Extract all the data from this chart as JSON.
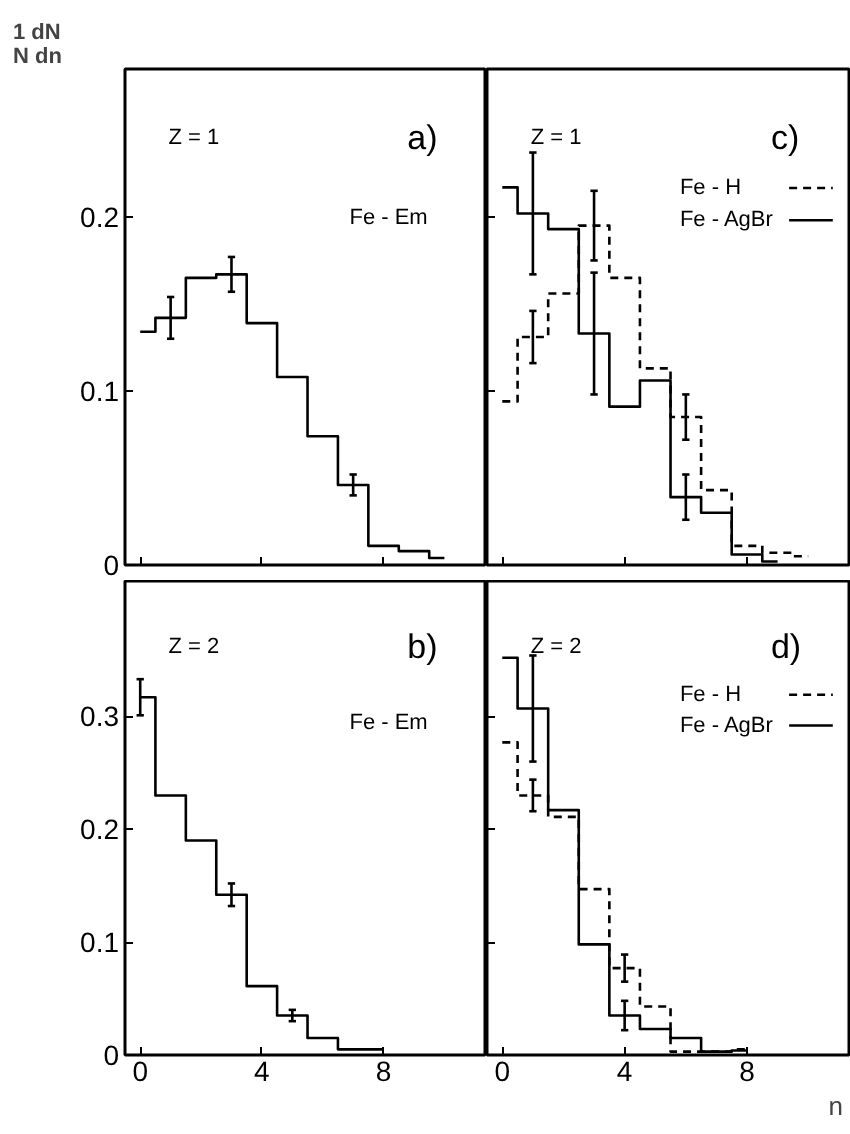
{
  "chart_data": [
    {
      "type": "step",
      "ylabel": "1 dN\nN dn",
      "annotations": [
        "Z = 1",
        "a)",
        "Fe - Em"
      ],
      "x": [
        0,
        1,
        2,
        3,
        4,
        5,
        6,
        7,
        8,
        9,
        10
      ],
      "xlim": [
        -0.5,
        11.4
      ],
      "ylim": [
        0,
        0.285
      ],
      "xticks": [
        {
          "value": 0,
          "label": null
        },
        {
          "value": 4,
          "label": null
        },
        {
          "value": 8,
          "label": null
        }
      ],
      "yticks": [
        0,
        0.1,
        0.2
      ],
      "tick_labels": "y",
      "grid": false,
      "series": [
        {
          "color": "#000000",
          "line_style": "solid",
          "values": [
            0.134,
            0.142,
            0.165,
            0.167,
            0.139,
            0.108,
            0.074,
            0.046,
            0.011,
            0.008,
            0.004
          ],
          "errors": [
            null,
            0.012,
            null,
            0.01,
            null,
            null,
            null,
            0.006,
            null,
            null,
            null
          ]
        }
      ]
    },
    {
      "type": "step",
      "annotations": [
        "Z = 1",
        "c)"
      ],
      "x": [
        0,
        1,
        2,
        3,
        4,
        5,
        6,
        7,
        8,
        9,
        10
      ],
      "xlim": [
        -0.5,
        11.4
      ],
      "ylim": [
        0,
        0.285
      ],
      "xticks": [
        {
          "value": 0,
          "label": null
        },
        {
          "value": 4,
          "label": null
        },
        {
          "value": 8,
          "label": null
        }
      ],
      "yticks": [
        {
          "value": 0,
          "label": null
        },
        {
          "value": 0.1,
          "label": null
        },
        {
          "value": 0.2,
          "label": null
        }
      ],
      "tick_labels": false,
      "grid": false,
      "legend": "top right",
      "series": [
        {
          "name": "Fe - H",
          "color": "#000000",
          "line_style": "dashed",
          "values": [
            0.094,
            0.131,
            0.156,
            0.195,
            0.165,
            0.113,
            0.085,
            0.043,
            0.011,
            0.007,
            0.005
          ],
          "errors": [
            null,
            0.015,
            null,
            0.02,
            null,
            null,
            0.013,
            null,
            null,
            null,
            null
          ]
        },
        {
          "name": "Fe - AgBr",
          "color": "#000000",
          "line_style": "solid",
          "values": [
            0.217,
            0.202,
            0.193,
            0.133,
            0.091,
            0.106,
            0.039,
            0.03,
            0.006,
            0.002,
            null
          ],
          "errors": [
            null,
            0.035,
            null,
            0.035,
            null,
            null,
            0.013,
            null,
            null,
            null,
            null
          ]
        }
      ]
    },
    {
      "type": "step",
      "annotations": [
        "Z = 2",
        "b)",
        "Fe - Em"
      ],
      "x": [
        0,
        1,
        2,
        3,
        4,
        5,
        6,
        7,
        8
      ],
      "xlim": [
        -0.5,
        11.4
      ],
      "ylim": [
        0,
        0.42
      ],
      "xticks": [
        0,
        4,
        8
      ],
      "yticks": [
        0,
        0.1,
        0.2,
        0.3
      ],
      "grid": false,
      "series": [
        {
          "color": "#000000",
          "line_style": "solid",
          "values": [
            0.317,
            0.23,
            0.19,
            0.142,
            0.061,
            0.035,
            0.015,
            0.005,
            0.005
          ],
          "errors": [
            0.016,
            null,
            null,
            0.01,
            null,
            0.005,
            null,
            null,
            null
          ]
        }
      ]
    },
    {
      "type": "step",
      "xlabel": "n",
      "annotations": [
        "Z = 2",
        "d)"
      ],
      "x": [
        0,
        1,
        2,
        3,
        4,
        5,
        6,
        7,
        8
      ],
      "xlim": [
        -0.5,
        11.4
      ],
      "ylim": [
        0,
        0.42
      ],
      "xticks": [
        0,
        4,
        8
      ],
      "yticks": [
        {
          "value": 0,
          "label": null
        },
        {
          "value": 0.1,
          "label": null
        },
        {
          "value": 0.2,
          "label": null
        },
        {
          "value": 0.3,
          "label": null
        }
      ],
      "tick_labels": "x",
      "grid": false,
      "legend": "top right",
      "series": [
        {
          "name": "Fe - H",
          "color": "#000000",
          "line_style": "dashed",
          "values": [
            0.277,
            0.23,
            0.211,
            0.147,
            0.077,
            0.043,
            0.003,
            0.003,
            0.005
          ],
          "errors": [
            null,
            0.014,
            null,
            null,
            0.012,
            null,
            null,
            null,
            null
          ]
        },
        {
          "name": "Fe - AgBr",
          "color": "#000000",
          "line_style": "solid",
          "values": [
            0.352,
            0.307,
            0.217,
            0.098,
            0.035,
            0.023,
            0.015,
            0.003,
            0.004
          ],
          "errors": [
            null,
            0.047,
            null,
            null,
            0.013,
            null,
            null,
            null,
            null
          ]
        }
      ]
    }
  ]
}
